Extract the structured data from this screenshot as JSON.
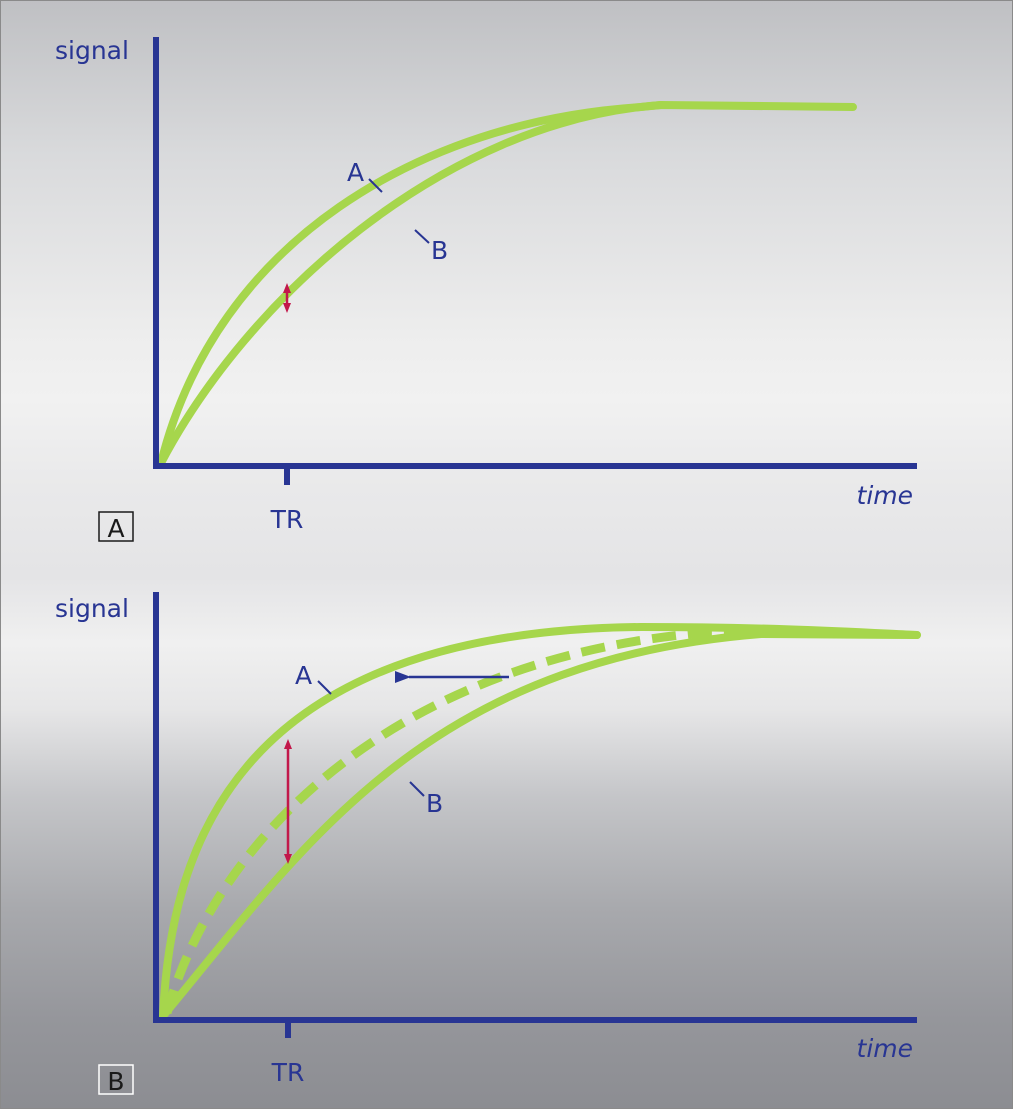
{
  "panels": [
    {
      "id": "A",
      "panel_label": "A",
      "y_axis_label": "signal",
      "x_axis_label": "time",
      "tick_label": "TR",
      "curve_a_label": "A",
      "curve_b_label": "B"
    },
    {
      "id": "B",
      "panel_label": "B",
      "y_axis_label": "signal",
      "x_axis_label": "time",
      "tick_label": "TR",
      "curve_a_label": "A",
      "curve_b_label": "B"
    }
  ],
  "colors": {
    "axis": "#283593",
    "curve": "#a6d64c",
    "difference_arrow": "#c2184b",
    "shift_arrow": "#283593"
  }
}
